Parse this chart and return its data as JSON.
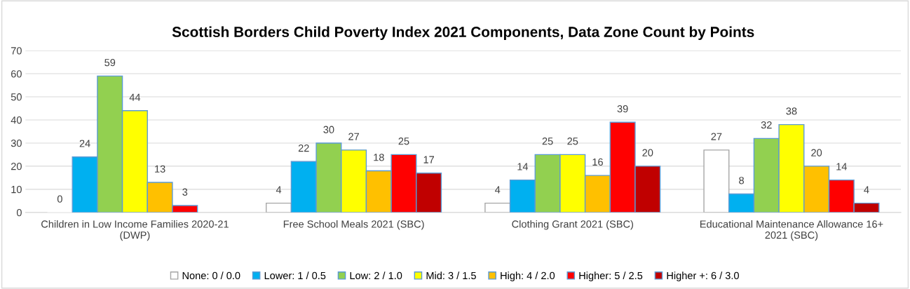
{
  "chart_data": {
    "type": "bar",
    "title": "Scottish Borders Child Poverty Index 2021 Components, Data Zone Count by Points",
    "categories": [
      "Children in Low Income Families 2020-21 (DWP)",
      "Free School Meals 2021 (SBC)",
      "Clothing Grant 2021 (SBC)",
      "Educational Maintenance Allowance 16+ 2021 (SBC)"
    ],
    "series": [
      {
        "name": "None: 0 / 0.0",
        "color": "#ffffff",
        "values": [
          0,
          4,
          4,
          27
        ]
      },
      {
        "name": "Lower: 1 / 0.5",
        "color": "#00b0f0",
        "values": [
          24,
          22,
          14,
          8
        ]
      },
      {
        "name": "Low: 2 / 1.0",
        "color": "#92d050",
        "values": [
          59,
          30,
          25,
          32
        ]
      },
      {
        "name": "Mid: 3 / 1.5",
        "color": "#ffff00",
        "values": [
          44,
          27,
          25,
          38
        ]
      },
      {
        "name": "High: 4 / 2.0",
        "color": "#ffc000",
        "values": [
          13,
          18,
          16,
          20
        ]
      },
      {
        "name": "Higher: 5 / 2.5",
        "color": "#ff0000",
        "values": [
          3,
          25,
          39,
          14
        ]
      },
      {
        "name": "Higher +: 6 / 3.0",
        "color": "#c00000",
        "values": [
          null,
          17,
          20,
          4
        ]
      }
    ],
    "ylim": [
      0,
      70
    ],
    "yticks": [
      0,
      10,
      20,
      30,
      40,
      50,
      60,
      70
    ],
    "grid": "y",
    "legend": "bottom",
    "data_labels": true
  }
}
